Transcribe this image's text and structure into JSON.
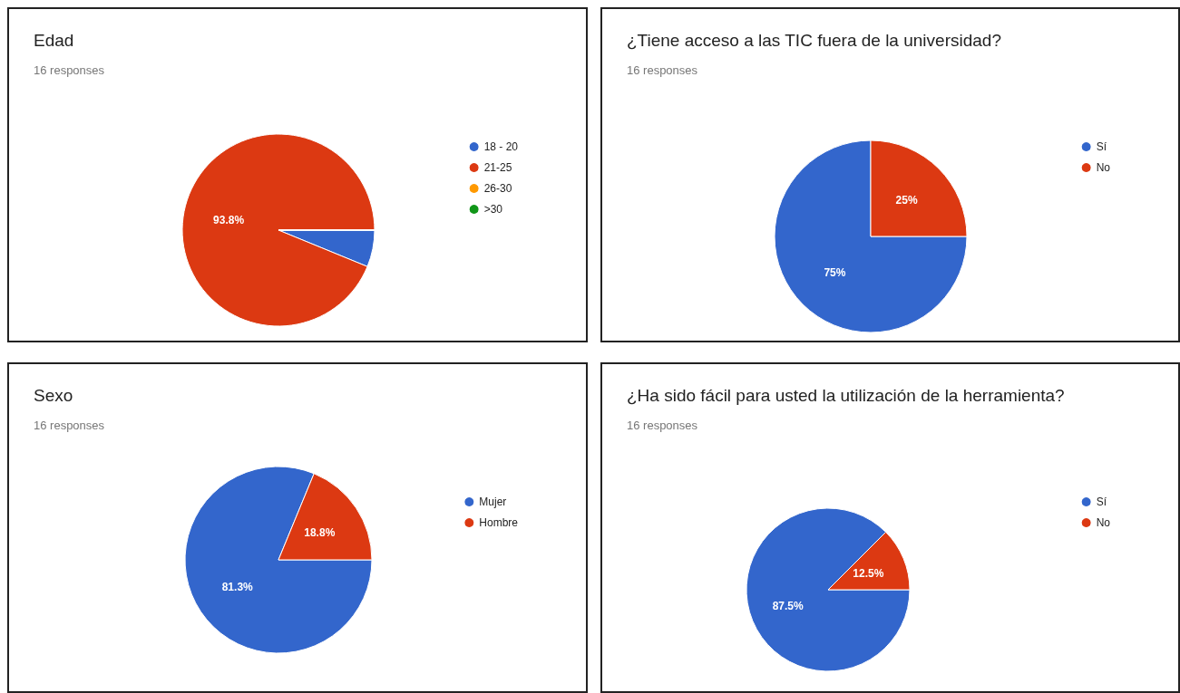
{
  "chart_data": [
    {
      "type": "pie",
      "title": "Edad",
      "subtitle": "16 responses",
      "categories": [
        "18 - 20",
        "21-25",
        "26-30",
        ">30"
      ],
      "values": [
        6.2,
        93.8,
        0,
        0
      ],
      "colors": [
        "#3366cc",
        "#dc3912",
        "#ff9900",
        "#109618"
      ],
      "value_labels": [
        null,
        "93.8%",
        null,
        null
      ],
      "legend": "right"
    },
    {
      "type": "pie",
      "title": "¿Tiene acceso a las TIC fuera de la universidad?",
      "subtitle": "16 responses",
      "categories": [
        "Sí",
        "No"
      ],
      "values": [
        75,
        25
      ],
      "colors": [
        "#3366cc",
        "#dc3912"
      ],
      "value_labels": [
        "75%",
        "25%"
      ],
      "legend": "right"
    },
    {
      "type": "pie",
      "title": "Sexo",
      "subtitle": "16 responses",
      "categories": [
        "Mujer",
        "Hombre"
      ],
      "values": [
        81.3,
        18.8
      ],
      "colors": [
        "#3366cc",
        "#dc3912"
      ],
      "value_labels": [
        "81.3%",
        "18.8%"
      ],
      "legend": "right"
    },
    {
      "type": "pie",
      "title": "¿Ha sido fácil para usted la utilización de la herramienta?",
      "subtitle": "16 responses",
      "categories": [
        "Sí",
        "No"
      ],
      "values": [
        87.5,
        12.5
      ],
      "colors": [
        "#3366cc",
        "#dc3912"
      ],
      "value_labels": [
        "87.5%",
        "12.5%"
      ],
      "legend": "right"
    }
  ]
}
